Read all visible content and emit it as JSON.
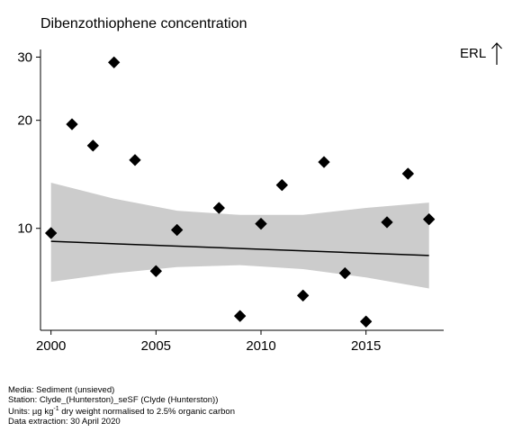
{
  "chart_data": {
    "type": "scatter",
    "title": "Dibenzothiophene concentration",
    "scale": "log",
    "xlim": [
      1999.5,
      2018.7
    ],
    "ylim": [
      5.2,
      31.5
    ],
    "x_ticks": [
      2000,
      2005,
      2010,
      2015
    ],
    "y_ticks": [
      10,
      20,
      30
    ],
    "grid": false,
    "points": [
      {
        "x": 2000,
        "y": 9.7
      },
      {
        "x": 2001,
        "y": 19.5
      },
      {
        "x": 2002,
        "y": 17.0
      },
      {
        "x": 2003,
        "y": 29.0
      },
      {
        "x": 2004,
        "y": 15.5
      },
      {
        "x": 2005,
        "y": 7.6
      },
      {
        "x": 2006,
        "y": 9.9
      },
      {
        "x": 2008,
        "y": 11.4
      },
      {
        "x": 2009,
        "y": 5.7
      },
      {
        "x": 2010,
        "y": 10.3
      },
      {
        "x": 2011,
        "y": 13.2
      },
      {
        "x": 2012,
        "y": 6.5
      },
      {
        "x": 2013,
        "y": 15.3
      },
      {
        "x": 2014,
        "y": 7.5
      },
      {
        "x": 2015,
        "y": 5.5
      },
      {
        "x": 2016,
        "y": 10.4
      },
      {
        "x": 2017,
        "y": 14.2
      },
      {
        "x": 2018,
        "y": 10.6
      }
    ],
    "trend": {
      "x": [
        2000,
        2018
      ],
      "y": [
        9.2,
        8.4
      ]
    },
    "confidence_band": {
      "x": [
        2000,
        2003,
        2006,
        2009,
        2012,
        2015,
        2018
      ],
      "lower": [
        7.1,
        7.5,
        7.8,
        7.9,
        7.7,
        7.3,
        6.8
      ],
      "upper": [
        13.4,
        12.1,
        11.2,
        10.9,
        10.9,
        11.4,
        11.8
      ]
    },
    "reference_label": "ERL",
    "colors": {
      "points": "#000000",
      "band": "#cccccc",
      "trend": "#000000"
    }
  },
  "footer": {
    "media": "Media: Sediment (unsieved)",
    "station": "Station: Clyde_(Hunterston)_seSF (Clyde (Hunterston))",
    "units_prefix": "Units:  µg kg",
    "units_sup": "-1",
    "units_suffix": " dry weight normalised to 2.5% organic carbon",
    "extraction": "Data extraction: 30 April 2020"
  }
}
